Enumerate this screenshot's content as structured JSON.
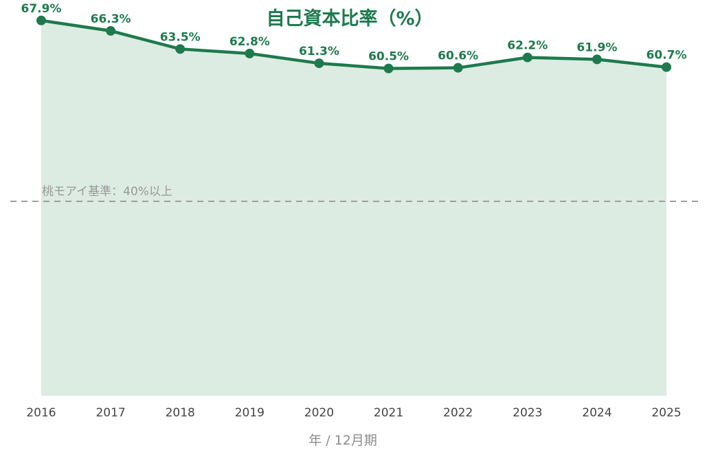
{
  "chart_data": {
    "type": "area",
    "title": "自己資本比率（%）",
    "xlabel": "年 / 12月期",
    "ylabel": "",
    "categories": [
      "2016",
      "2017",
      "2018",
      "2019",
      "2020",
      "2021",
      "2022",
      "2023",
      "2024",
      "2025"
    ],
    "series": [
      {
        "values": [
          67.9,
          66.3,
          63.5,
          62.8,
          61.3,
          60.5,
          60.6,
          62.2,
          61.9,
          60.7
        ],
        "data_labels": [
          "67.9%",
          "66.3%",
          "63.5%",
          "62.8%",
          "61.3%",
          "60.5%",
          "60.6%",
          "62.2%",
          "61.9%",
          "60.7%"
        ]
      }
    ],
    "reference_line": {
      "value": 40,
      "label": "桃モアイ基準：40%以上",
      "style": "dashed",
      "color": "#9e9e9e"
    },
    "ylim": [
      10,
      70
    ],
    "y_axis_visible": false,
    "grid": false,
    "legend": "none",
    "colors": {
      "line": "#1e7a4e",
      "fill": "#dcece2",
      "title": "#1e7a4e"
    }
  }
}
